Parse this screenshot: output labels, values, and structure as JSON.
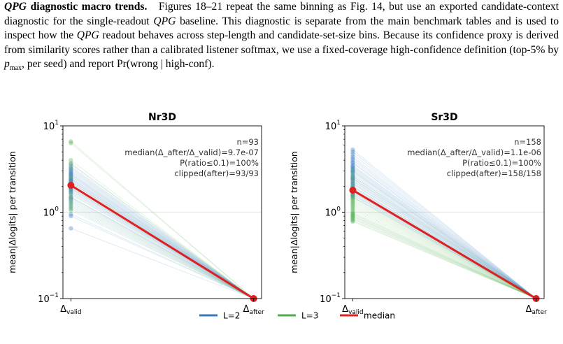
{
  "paragraph": {
    "heading_em": "QPG",
    "heading_rest": " diagnostic macro trends.",
    "s1a": "Figures 18–21 repeat the same binning as Fig. 14, but use an exported candidate-context diagnostic for the single-readout ",
    "s1em": "QPG",
    "s1b": " baseline. This diagnostic is separate from the main benchmark tables and is used to inspect how the ",
    "s2em": "QPG",
    "s2b": " readout behaves across step-length and candidate-set-size bins. Because its confidence proxy is derived from similarity scores rather than a calibrated listener softmax, we use a fixed-coverage high-confidence definition (top-5% by ",
    "pmax_p": "p",
    "pmax_sub": "max",
    "s3": ", per seed) and report Pr(wrong | high-conf)."
  },
  "legend": {
    "items": [
      {
        "label": "L=2",
        "color": "#3a7bbf"
      },
      {
        "label": "L=3",
        "color": "#4fae4f"
      },
      {
        "label": "median",
        "color": "#e02020"
      }
    ]
  },
  "chart_data": [
    {
      "type": "line",
      "title": "Nr3D",
      "ylabel": "mean|Δlogits| per transition",
      "yscale": "log",
      "ylim": [
        0.1,
        10
      ],
      "yticks": [
        {
          "base": "10",
          "exp": "1"
        },
        {
          "base": "10",
          "exp": "0"
        },
        {
          "base": "10",
          "exp": "−1"
        }
      ],
      "xticks": [
        {
          "base": "Δ",
          "sub": "valid"
        },
        {
          "base": "Δ",
          "sub": "after"
        }
      ],
      "annotations": [
        "n=93",
        "median(Δ_after/Δ_valid)=9.7e-07",
        "P(ratio≤0.1)=100%",
        "clipped(after)=93/93"
      ],
      "median": [
        2.05,
        0.1
      ],
      "series": [
        {
          "name": "L=2",
          "start_values": [
            3.6,
            3.4,
            3.2,
            3.0,
            2.9,
            2.8,
            2.7,
            2.6,
            2.5,
            2.45,
            2.4,
            2.3,
            2.25,
            2.2,
            2.1,
            2.0,
            1.95,
            1.9,
            1.85,
            1.8,
            1.75,
            1.7,
            1.6,
            1.5,
            1.45,
            1.4,
            1.3,
            1.2,
            1.1,
            0.95,
            0.9,
            0.65,
            3.1,
            2.75,
            2.35
          ]
        },
        {
          "name": "L=3",
          "start_values": [
            6.6,
            6.3,
            4.0,
            3.7,
            3.3,
            2.6,
            2.2,
            1.9,
            1.65,
            1.5,
            1.35,
            1.25,
            1.15,
            1.05
          ]
        }
      ]
    },
    {
      "type": "line",
      "title": "Sr3D",
      "ylabel": "mean|Δlogits| per transition",
      "yscale": "log",
      "ylim": [
        0.1,
        10
      ],
      "yticks": [
        {
          "base": "10",
          "exp": "1"
        },
        {
          "base": "10",
          "exp": "0"
        },
        {
          "base": "10",
          "exp": "−1"
        }
      ],
      "xticks": [
        {
          "base": "Δ",
          "sub": "valid"
        },
        {
          "base": "Δ",
          "sub": "after"
        }
      ],
      "annotations": [
        "n=158",
        "median(Δ_after/Δ_valid)=1.1e-06",
        "P(ratio≤0.1)=100%",
        "clipped(after)=158/158"
      ],
      "median": [
        1.8,
        0.1
      ],
      "series": [
        {
          "name": "L=2",
          "start_values": [
            5.3,
            5.0,
            4.7,
            4.4,
            4.2,
            4.0,
            3.8,
            3.7,
            3.5,
            3.4,
            3.3,
            3.2,
            3.1,
            3.0,
            2.9,
            2.8,
            2.7,
            2.6,
            2.5,
            2.45,
            2.4,
            2.3,
            2.2,
            2.15,
            2.1,
            2.0,
            1.95,
            1.9,
            1.85,
            1.8,
            1.75,
            1.7,
            1.65,
            1.6,
            1.55,
            1.5
          ]
        },
        {
          "name": "L=3",
          "start_values": [
            3.0,
            2.6,
            2.3,
            2.0,
            1.8,
            1.7,
            1.6,
            1.5,
            1.45,
            1.4,
            1.35,
            1.3,
            1.25,
            1.2,
            1.15,
            1.1,
            1.05,
            1.0,
            0.97,
            0.95,
            0.92,
            0.9,
            0.88,
            0.85,
            0.83,
            0.8,
            0.78
          ]
        }
      ]
    }
  ]
}
